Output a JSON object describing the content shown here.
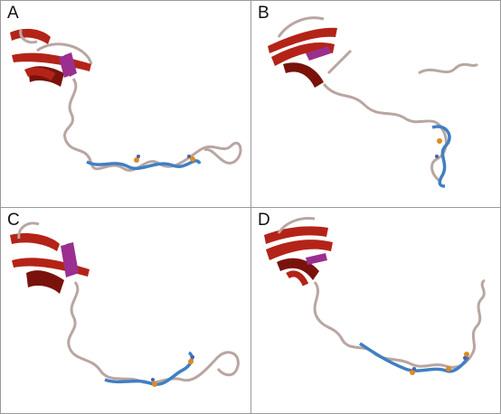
{
  "figure": {
    "panels": [
      {
        "label": "A"
      },
      {
        "label": "B"
      },
      {
        "label": "C"
      },
      {
        "label": "D"
      }
    ]
  },
  "colors": {
    "helix": "#b42318",
    "helix_shadow": "#7a120c",
    "sheet": "#9b2f8f",
    "coil": "#b9a6a1",
    "coil_edge": "#8f7a75",
    "highlight_loop": "#3f7fc4",
    "ligand_orange": "#e08a1e",
    "ligand_blue": "#4a5fb0",
    "border": "#9a9a9a"
  }
}
